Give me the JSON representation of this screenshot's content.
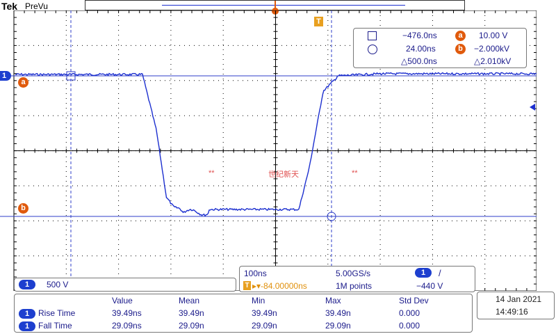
{
  "header": {
    "brand": "Tek",
    "mode": "PreVu"
  },
  "markers": {
    "trigger_T": "T",
    "ch1_marker": "1",
    "cursor_a": "a",
    "cursor_b": "b"
  },
  "cursor_readout": {
    "square_time": "−476.0ns",
    "circle_time": "24.00ns",
    "delta_time": "△500.0ns",
    "a_value": "10.00 V",
    "b_value": "−2.000kV",
    "delta_value": "△2.010kV",
    "a_label": "a",
    "b_label": "b"
  },
  "watermark": {
    "left": "**",
    "center": "世纪新天",
    "right": "**"
  },
  "channel_box": {
    "ch": "1",
    "scale": "500 V"
  },
  "timebase": {
    "time_per_div": "100ns",
    "sample_rate": "5.00GS/s",
    "trigger_ch": "1",
    "trigger_slope": "/",
    "trigger_label": "T",
    "trigger_pos": "▸▾-84.00000ns",
    "record_length": "1M points",
    "trigger_level": "−440 V"
  },
  "measurements": {
    "headers": [
      "Value",
      "Mean",
      "Min",
      "Max",
      "Std Dev"
    ],
    "rows": [
      {
        "ch": "1",
        "name": "Rise Time",
        "value": "39.49ns",
        "mean": "39.49n",
        "min": "39.49n",
        "max": "39.49n",
        "std": "0.000"
      },
      {
        "ch": "1",
        "name": "Fall Time",
        "value": "29.09ns",
        "mean": "29.09n",
        "min": "29.09n",
        "max": "29.09n",
        "std": "0.000"
      }
    ]
  },
  "datetime": {
    "date": "14 Jan  2021",
    "time": "14:49:16"
  },
  "colors": {
    "waveform": "#1c2fcf",
    "cursor": "#2d3ec8",
    "accent": "#e05a0c",
    "grid": "#000000"
  }
}
